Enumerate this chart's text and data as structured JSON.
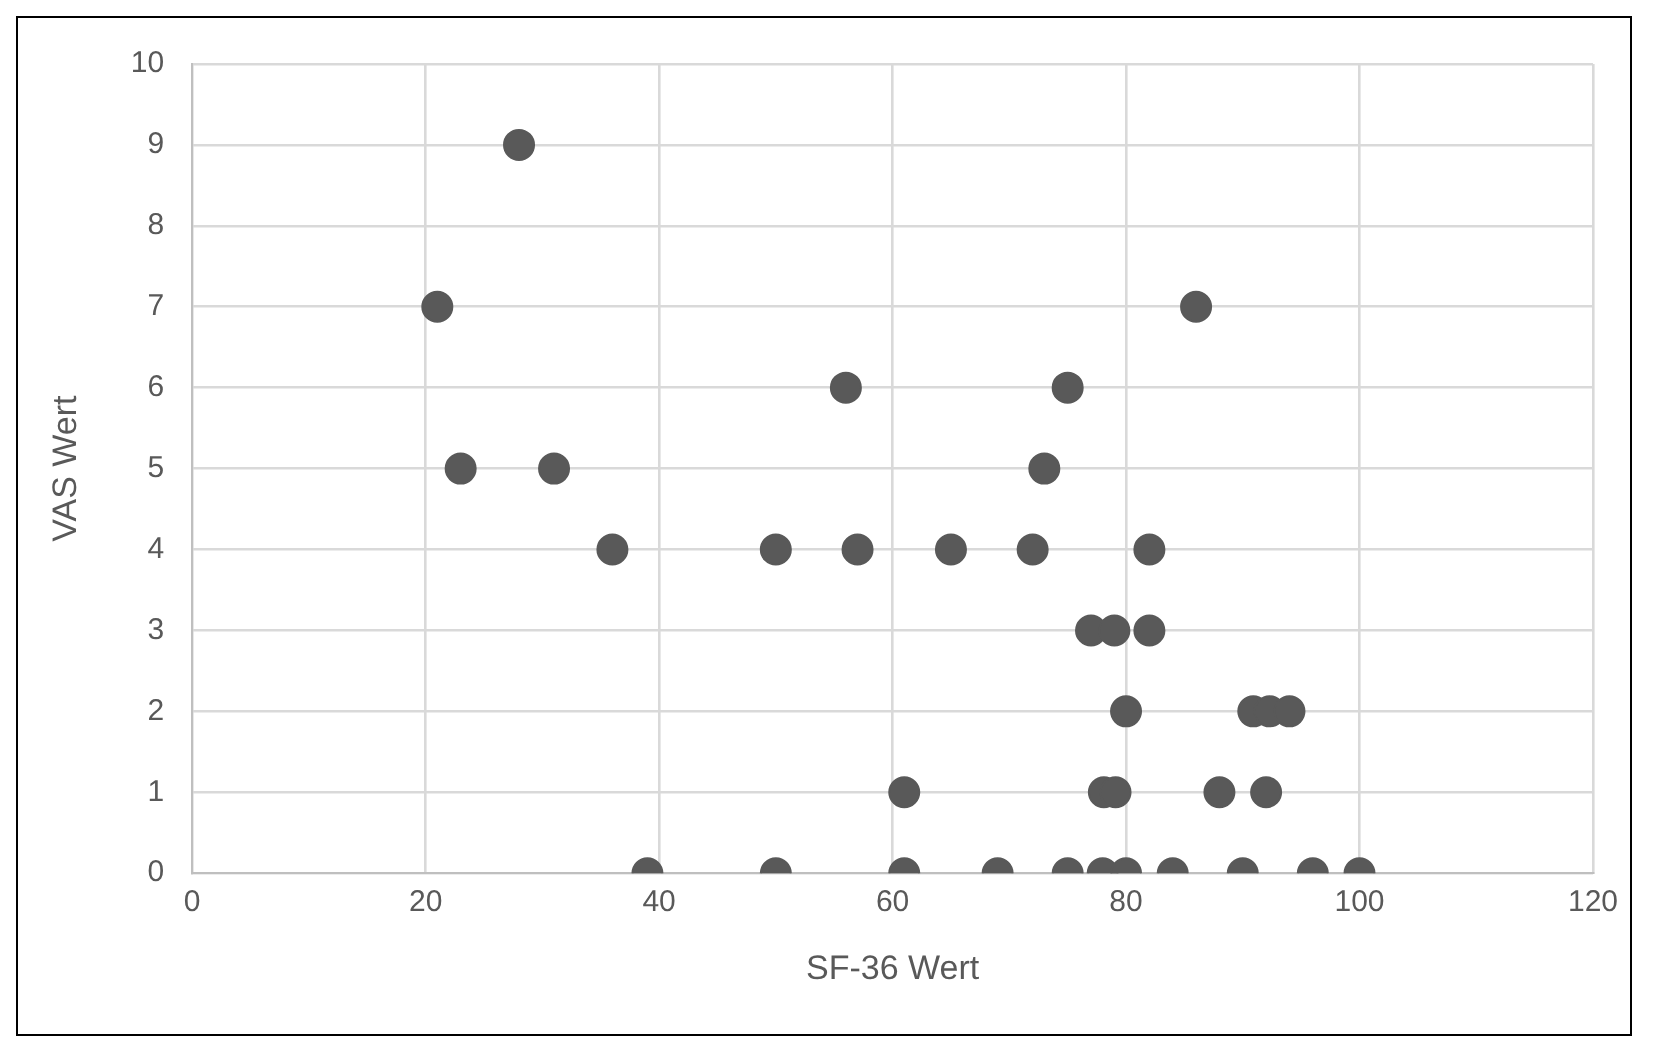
{
  "chart_data": {
    "type": "scatter",
    "xlabel": "SF-36 Wert",
    "ylabel": "VAS Wert",
    "xlim": [
      0,
      120
    ],
    "xticks": [
      0,
      20,
      40,
      60,
      80,
      100,
      120
    ],
    "ylim": [
      0,
      10
    ],
    "yticks": [
      0,
      1,
      2,
      3,
      4,
      5,
      6,
      7,
      8,
      9,
      10
    ],
    "grid": true,
    "marker": "circle",
    "series": [
      {
        "color": "#595959",
        "x": [
          28,
          21,
          23,
          31,
          36,
          50,
          57,
          56,
          39,
          50,
          86,
          75,
          73,
          65,
          72,
          82,
          77,
          79,
          82,
          80,
          90.9,
          92.3,
          94,
          61,
          78.1,
          79.1,
          88,
          92,
          61,
          69,
          75,
          78,
          80,
          84,
          90,
          96,
          100
        ],
        "values": [
          9,
          7,
          5,
          5,
          4,
          4,
          4,
          6,
          0,
          0,
          7,
          6,
          5,
          4,
          4,
          4,
          3,
          3,
          3,
          2,
          2,
          2,
          2,
          1,
          1,
          1,
          1,
          1,
          0,
          0,
          0,
          0,
          0,
          0,
          0,
          0,
          0
        ]
      }
    ]
  }
}
